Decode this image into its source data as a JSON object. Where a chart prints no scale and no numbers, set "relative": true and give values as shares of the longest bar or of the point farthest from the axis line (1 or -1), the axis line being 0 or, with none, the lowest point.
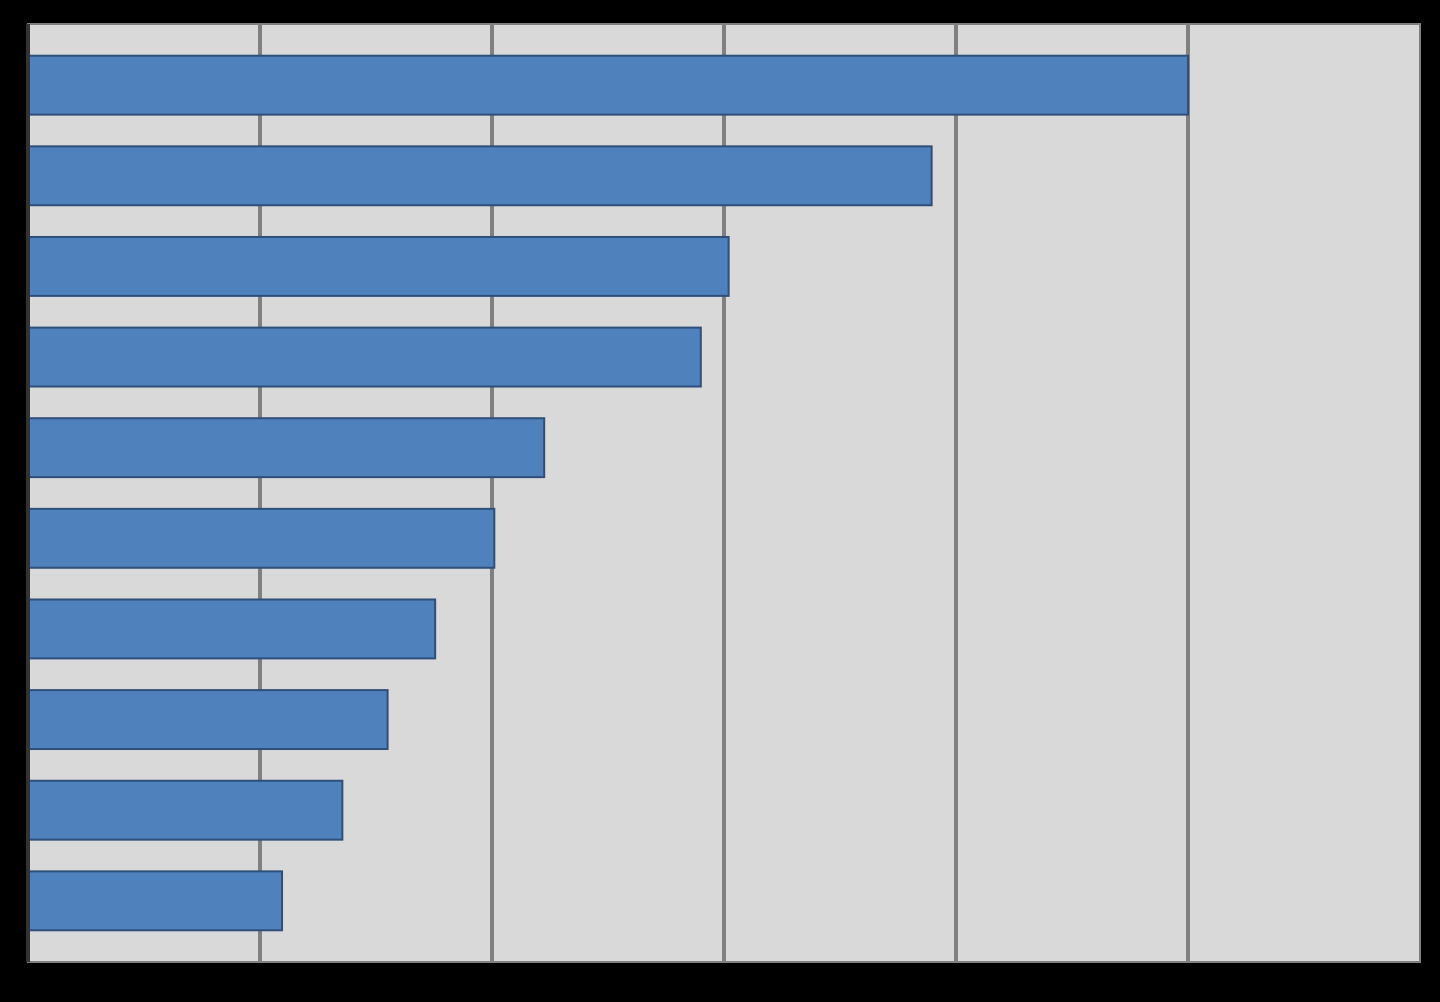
{
  "chart_data": {
    "type": "bar",
    "orientation": "horizontal",
    "relative": true,
    "grid": "x",
    "categories": [
      null,
      null,
      null,
      null,
      null,
      null,
      null,
      null,
      null,
      null
    ],
    "values": [
      1,
      0.779,
      0.604,
      0.58,
      0.445,
      0.402,
      0.351,
      0.31,
      0.271,
      0.219
    ],
    "color": "#4f81bd"
  }
}
